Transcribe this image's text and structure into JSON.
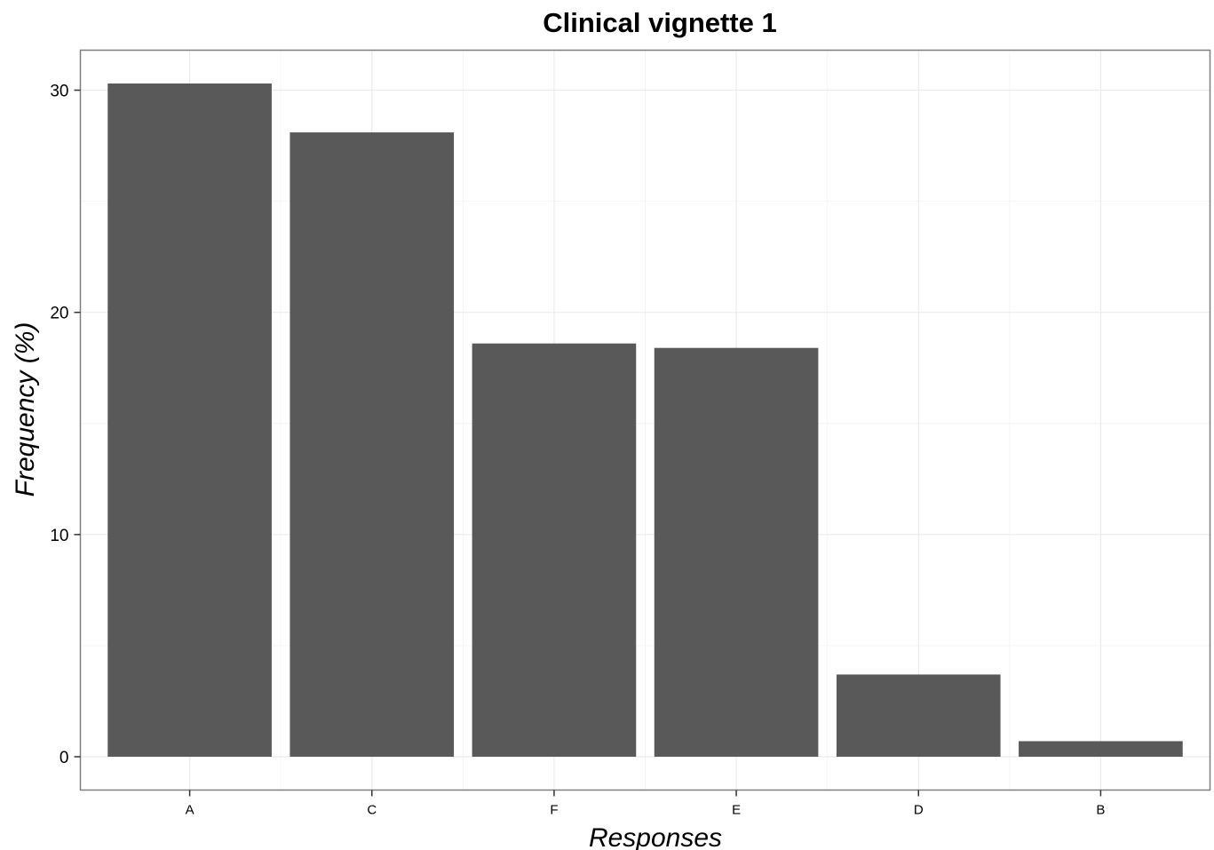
{
  "chart_data": {
    "type": "bar",
    "title": "Clinical vignette 1",
    "xlabel": "Responses",
    "ylabel": "Frequency (%)",
    "categories": [
      "A",
      "C",
      "F",
      "E",
      "D",
      "B"
    ],
    "values": [
      30.3,
      28.1,
      18.6,
      18.4,
      3.7,
      0.7
    ],
    "ylim": [
      -1.5,
      31.8
    ],
    "y_ticks": [
      0,
      10,
      20,
      30
    ],
    "y_tick_labels": [
      "0",
      "10",
      "20",
      "30"
    ],
    "y_minor_ticks": [
      5,
      15,
      25
    ],
    "grid": true,
    "legend": "none",
    "colors": {
      "bar": "#595959",
      "panel_border": "#7f7f7f",
      "grid_major": "#ebebeb",
      "grid_minor": "#f4f4f4",
      "tick": "#333333"
    }
  }
}
